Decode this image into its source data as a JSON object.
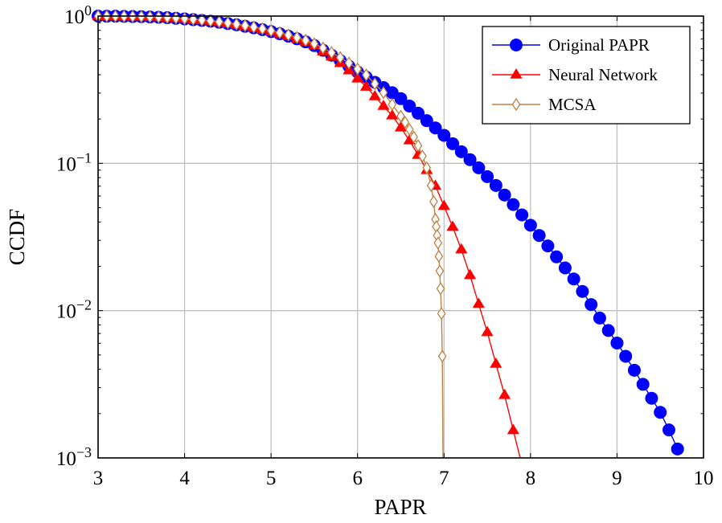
{
  "chart_data": {
    "type": "line",
    "title": "",
    "xlabel": "PAPR",
    "ylabel": "CCDF",
    "xlim": [
      3,
      10
    ],
    "ylim": [
      0.001,
      1
    ],
    "yscale": "log",
    "grid": true,
    "legend_position": "top-right",
    "x_ticks": [
      "3",
      "4",
      "5",
      "6",
      "7",
      "8",
      "9",
      "10"
    ],
    "x_tick_values": [
      3,
      4,
      5,
      6,
      7,
      8,
      9,
      10
    ],
    "y_ticks": [
      {
        "value": 1,
        "base": "10",
        "exp": "0"
      },
      {
        "value": 0.1,
        "base": "10",
        "exp": "−1"
      },
      {
        "value": 0.01,
        "base": "10",
        "exp": "−2"
      },
      {
        "value": 0.001,
        "base": "10",
        "exp": "−3"
      }
    ],
    "series": [
      {
        "name": "Original PAPR",
        "color": "#0000ff",
        "marker": "circle-filled",
        "x": [
          3.0,
          3.1,
          3.2,
          3.3,
          3.4,
          3.5,
          3.6,
          3.7,
          3.8,
          3.9,
          4.0,
          4.1,
          4.2,
          4.3,
          4.4,
          4.5,
          4.6,
          4.7,
          4.8,
          4.9,
          5.0,
          5.1,
          5.2,
          5.3,
          5.4,
          5.5,
          5.6,
          5.7,
          5.8,
          5.9,
          6.0,
          6.1,
          6.2,
          6.3,
          6.4,
          6.5,
          6.6,
          6.7,
          6.8,
          6.9,
          7.0,
          7.1,
          7.2,
          7.3,
          7.4,
          7.5,
          7.6,
          7.7,
          7.8,
          7.9,
          8.0,
          8.1,
          8.2,
          8.3,
          8.4,
          8.5,
          8.6,
          8.7,
          8.8,
          8.9,
          9.0,
          9.1,
          9.2,
          9.3,
          9.4,
          9.5,
          9.6,
          9.7
        ],
        "y": [
          1.0,
          0.998,
          0.998,
          0.995,
          0.993,
          0.991,
          0.986,
          0.982,
          0.975,
          0.966,
          0.957,
          0.946,
          0.935,
          0.923,
          0.908,
          0.891,
          0.873,
          0.853,
          0.832,
          0.809,
          0.785,
          0.759,
          0.731,
          0.701,
          0.668,
          0.631,
          0.586,
          0.542,
          0.499,
          0.457,
          0.417,
          0.385,
          0.355,
          0.327,
          0.302,
          0.275,
          0.245,
          0.219,
          0.195,
          0.174,
          0.155,
          0.136,
          0.12,
          0.106,
          0.0933,
          0.0813,
          0.0708,
          0.061,
          0.0525,
          0.0447,
          0.038,
          0.0324,
          0.0275,
          0.0232,
          0.0195,
          0.0164,
          0.0135,
          0.011,
          0.00891,
          0.00733,
          0.00603,
          0.0049,
          0.00394,
          0.00316,
          0.00254,
          0.00204,
          0.00155,
          0.00115
        ]
      },
      {
        "name": "Neural Network",
        "color": "#ff0000",
        "marker": "triangle-filled",
        "x": [
          3.0,
          3.1,
          3.2,
          3.3,
          3.4,
          3.5,
          3.6,
          3.7,
          3.8,
          3.9,
          4.0,
          4.1,
          4.2,
          4.3,
          4.4,
          4.5,
          4.6,
          4.7,
          4.8,
          4.9,
          5.0,
          5.1,
          5.2,
          5.3,
          5.4,
          5.5,
          5.6,
          5.7,
          5.8,
          5.9,
          6.0,
          6.1,
          6.2,
          6.3,
          6.4,
          6.5,
          6.6,
          6.7,
          6.8,
          6.9,
          7.0,
          7.1,
          7.2,
          7.3,
          7.4,
          7.5,
          7.6,
          7.7,
          7.8,
          7.9
        ],
        "y": [
          1.0,
          0.998,
          0.998,
          0.995,
          0.993,
          0.991,
          0.986,
          0.982,
          0.975,
          0.966,
          0.957,
          0.946,
          0.935,
          0.923,
          0.908,
          0.891,
          0.873,
          0.853,
          0.832,
          0.809,
          0.785,
          0.759,
          0.731,
          0.701,
          0.668,
          0.631,
          0.575,
          0.531,
          0.479,
          0.427,
          0.376,
          0.331,
          0.285,
          0.245,
          0.211,
          0.175,
          0.143,
          0.114,
          0.0899,
          0.0703,
          0.0513,
          0.037,
          0.026,
          0.0174,
          0.0111,
          0.00713,
          0.00435,
          0.00267,
          0.00154,
          0.0009
        ]
      },
      {
        "name": "MCSA",
        "color": "#c08040",
        "marker": "diamond-open",
        "x": [
          3.0,
          3.1,
          3.2,
          3.3,
          3.4,
          3.5,
          3.6,
          3.7,
          3.8,
          3.9,
          4.0,
          4.1,
          4.2,
          4.3,
          4.4,
          4.5,
          4.6,
          4.7,
          4.8,
          4.9,
          5.0,
          5.1,
          5.2,
          5.3,
          5.4,
          5.5,
          5.6,
          5.7,
          5.8,
          5.9,
          6.0,
          6.1,
          6.2,
          6.3,
          6.4,
          6.5,
          6.55,
          6.6,
          6.65,
          6.7,
          6.75,
          6.8,
          6.85,
          6.88,
          6.9,
          6.91,
          6.92,
          6.93,
          6.94,
          6.95,
          6.96,
          6.97,
          6.98,
          7.0
        ],
        "y": [
          1.0,
          0.998,
          0.998,
          0.996,
          0.994,
          0.992,
          0.988,
          0.984,
          0.978,
          0.97,
          0.961,
          0.951,
          0.94,
          0.928,
          0.914,
          0.898,
          0.881,
          0.862,
          0.842,
          0.82,
          0.796,
          0.771,
          0.744,
          0.715,
          0.684,
          0.649,
          0.607,
          0.565,
          0.523,
          0.48,
          0.437,
          0.398,
          0.347,
          0.302,
          0.251,
          0.209,
          0.19,
          0.17,
          0.151,
          0.132,
          0.112,
          0.0933,
          0.0708,
          0.055,
          0.0417,
          0.0372,
          0.0324,
          0.0288,
          0.0234,
          0.0186,
          0.0141,
          0.00955,
          0.0049,
          0.0001
        ]
      }
    ]
  }
}
